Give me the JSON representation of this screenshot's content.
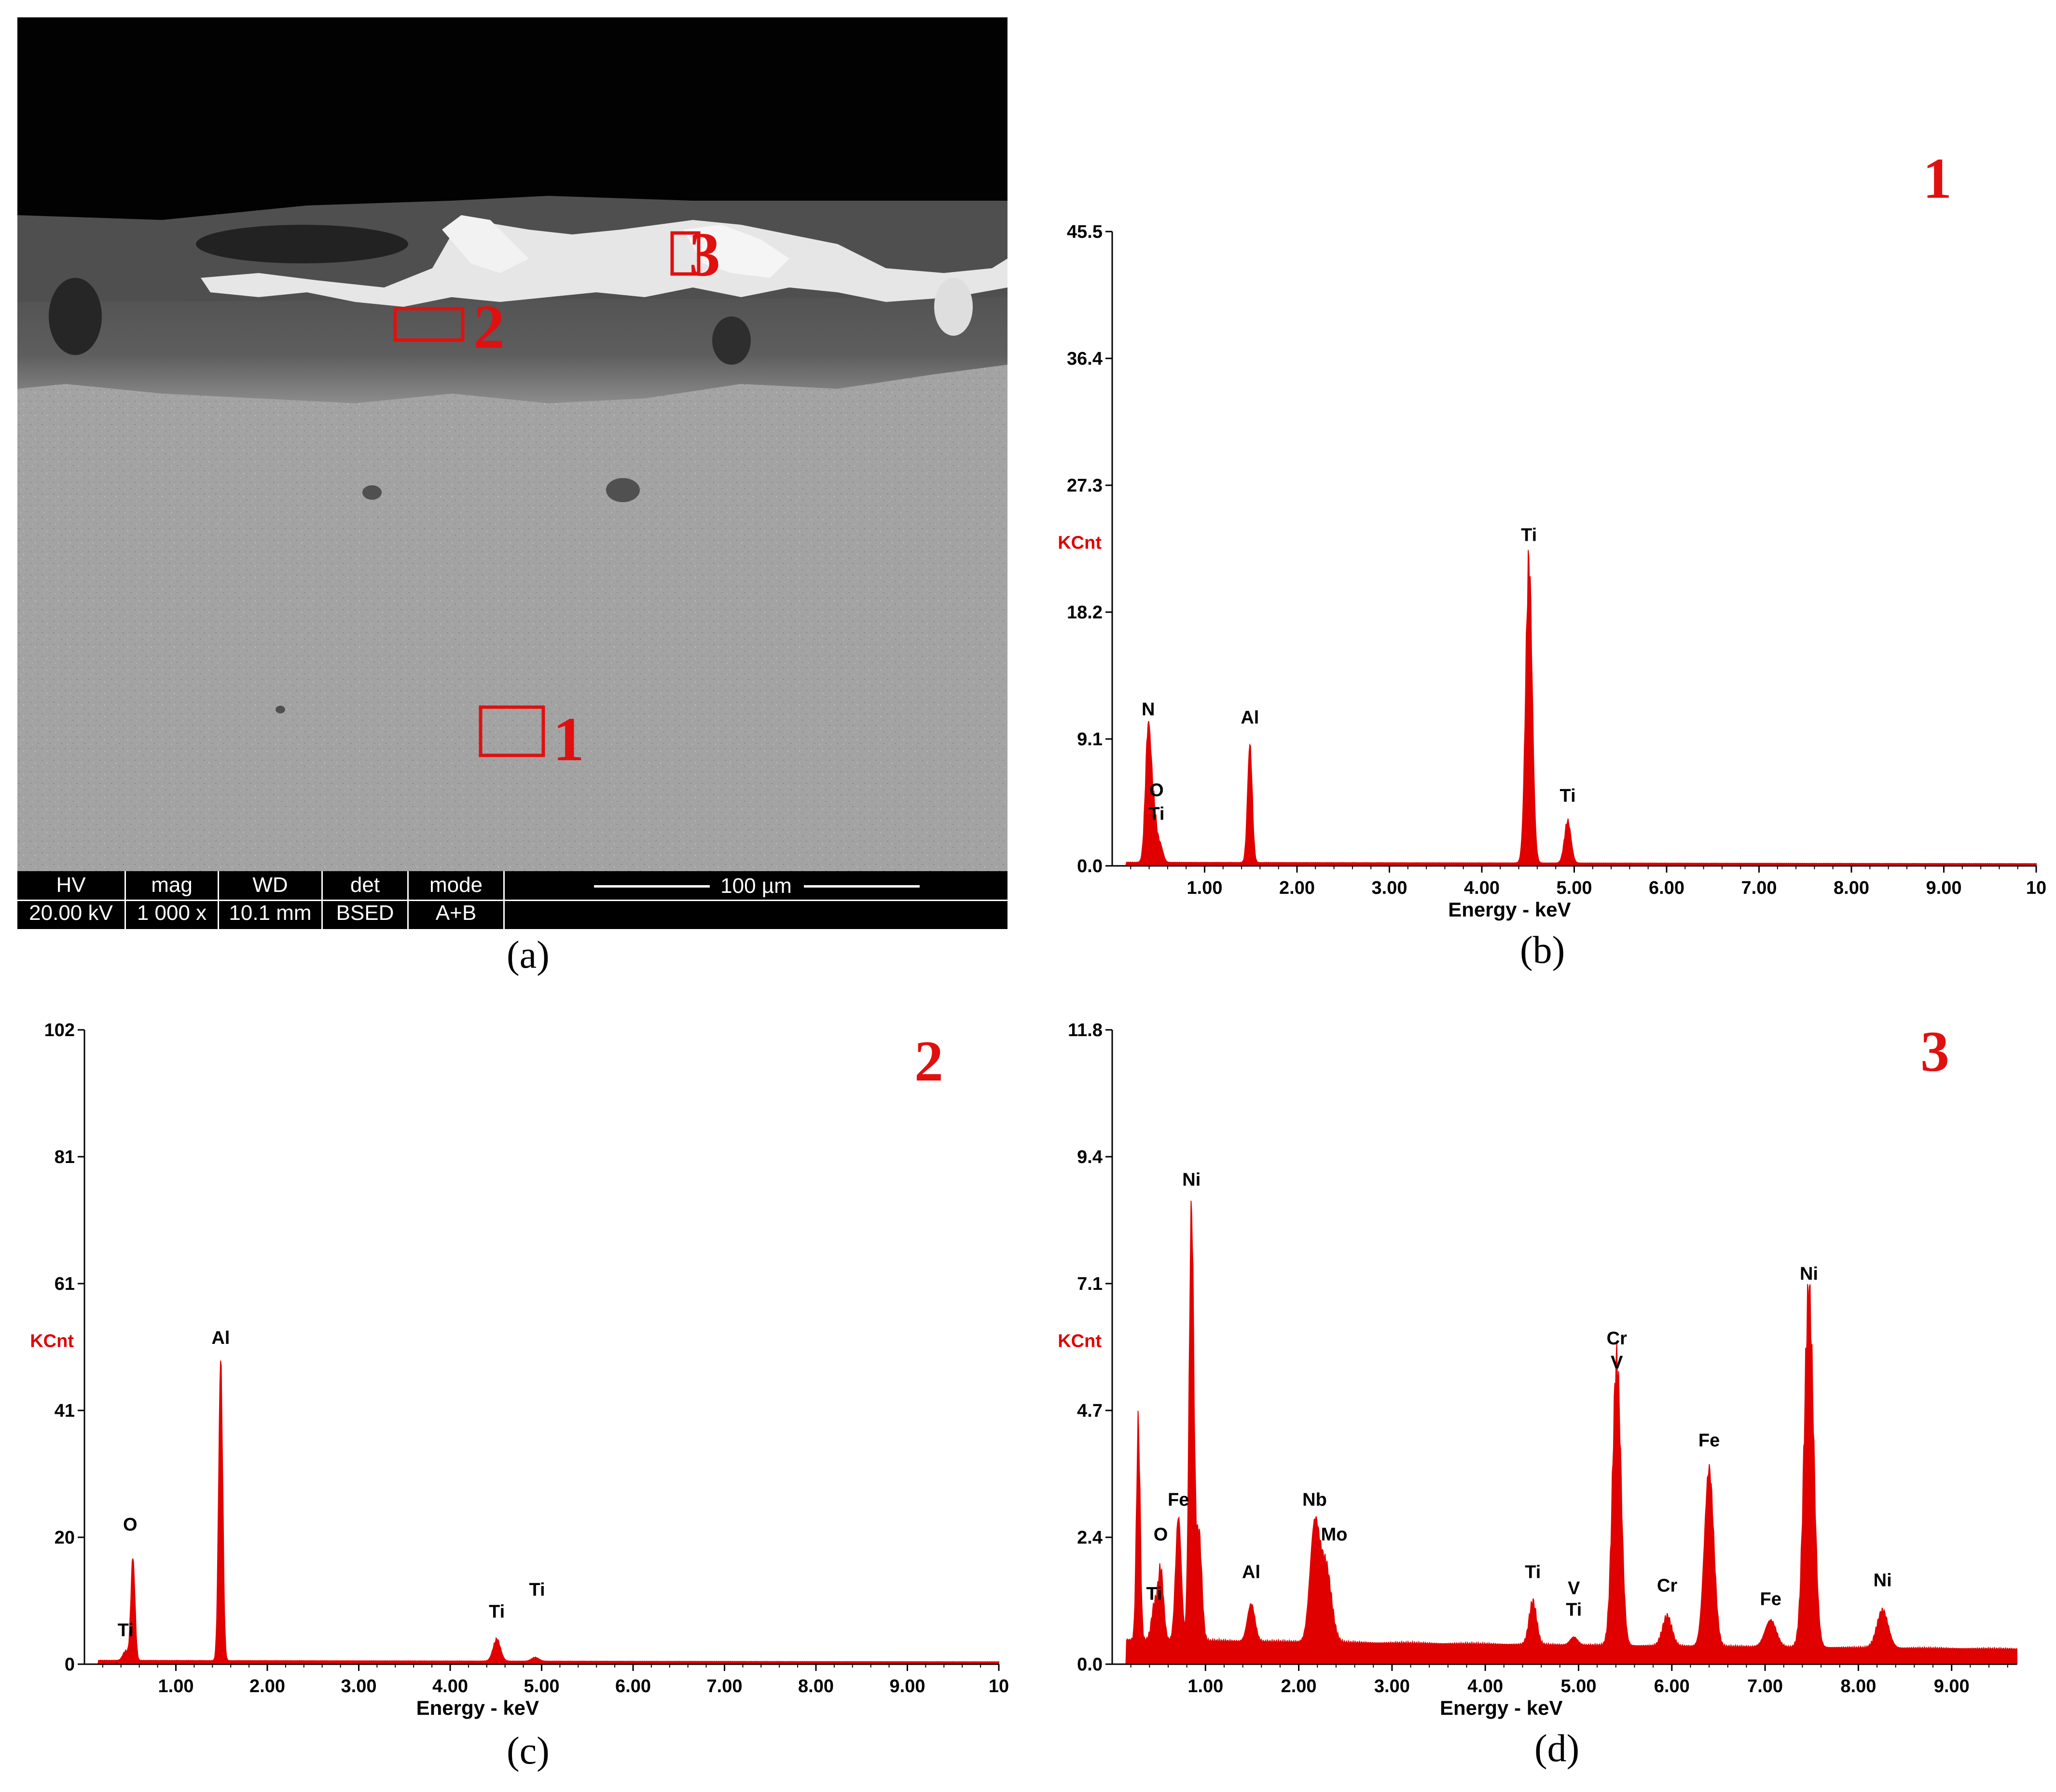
{
  "figure": {
    "captions": [
      "(a)",
      "(b)",
      "(c)",
      "(d)"
    ]
  },
  "sem_image": {
    "regions": [
      "1",
      "2",
      "3"
    ],
    "databar": {
      "headers": [
        "HV",
        "mag",
        "WD",
        "det",
        "mode"
      ],
      "values": [
        "20.00 kV",
        "1 000 x",
        "10.1 mm",
        "BSED",
        "A+B"
      ],
      "scale_bar": "100 µm"
    },
    "box_color": "#e01010"
  },
  "chart_data": [
    {
      "type": "area",
      "panel": "b",
      "spectrum_label": "1",
      "xlabel": "Energy - keV",
      "ylabel": "KCnt",
      "ylim": [
        0,
        45.5
      ],
      "xlim": [
        0,
        10
      ],
      "yticks": [
        "0.0",
        "9.1",
        "18.2",
        "27.3",
        "36.4",
        "45.5"
      ],
      "xticks": [
        "1.00",
        "2.00",
        "3.00",
        "4.00",
        "5.00",
        "6.00",
        "7.00",
        "8.00",
        "9.00",
        "10"
      ],
      "color": "#e00000",
      "baseline": 0.25,
      "peaks": [
        {
          "x": 0.39,
          "y": 9.5,
          "w": 0.03
        },
        {
          "x": 0.45,
          "y": 3.5,
          "w": 0.03
        },
        {
          "x": 0.52,
          "y": 1.2,
          "w": 0.03
        },
        {
          "x": 1.49,
          "y": 8.4,
          "w": 0.025
        },
        {
          "x": 4.51,
          "y": 21.5,
          "w": 0.035
        },
        {
          "x": 4.93,
          "y": 3.0,
          "w": 0.035
        }
      ],
      "labels": [
        {
          "text": "N",
          "x": 0.39,
          "y": 10.8
        },
        {
          "text": "O",
          "x": 0.48,
          "y": 5.0
        },
        {
          "text": "Ti",
          "x": 0.48,
          "y": 3.3
        },
        {
          "text": "Al",
          "x": 1.49,
          "y": 10.2
        },
        {
          "text": "Ti",
          "x": 4.51,
          "y": 23.3
        },
        {
          "text": "Ti",
          "x": 4.93,
          "y": 4.6
        }
      ]
    },
    {
      "type": "area",
      "panel": "c",
      "spectrum_label": "2",
      "xlabel": "Energy - keV",
      "ylabel": "KCnt",
      "ylim": [
        0,
        102
      ],
      "xlim": [
        0,
        10
      ],
      "yticks": [
        "0",
        "20",
        "41",
        "61",
        "81",
        "102"
      ],
      "xticks": [
        "1.00",
        "2.00",
        "3.00",
        "4.00",
        "5.00",
        "6.00",
        "7.00",
        "8.00",
        "9.00",
        "10"
      ],
      "color": "#e00000",
      "baseline": 0.6,
      "peaks": [
        {
          "x": 0.45,
          "y": 1.5,
          "w": 0.03
        },
        {
          "x": 0.53,
          "y": 16.5,
          "w": 0.022
        },
        {
          "x": 1.49,
          "y": 48.0,
          "w": 0.022
        },
        {
          "x": 4.51,
          "y": 3.5,
          "w": 0.04
        },
        {
          "x": 4.93,
          "y": 0.6,
          "w": 0.04
        }
      ],
      "labels": [
        {
          "text": "O",
          "x": 0.5,
          "y": 21.5
        },
        {
          "text": "Ti",
          "x": 0.45,
          "y": 4.5
        },
        {
          "text": "Al",
          "x": 1.49,
          "y": 51.5
        },
        {
          "text": "Ti",
          "x": 4.51,
          "y": 7.5
        },
        {
          "text": "Ti",
          "x": 4.95,
          "y": 11.0
        }
      ]
    },
    {
      "type": "area",
      "panel": "d",
      "spectrum_label": "3",
      "xlabel": "Energy - keV",
      "ylabel": "KCnt",
      "ylim": [
        0,
        11.8
      ],
      "xlim": [
        0,
        9.7
      ],
      "yticks": [
        "0.0",
        "2.4",
        "4.7",
        "7.1",
        "9.4",
        "11.8"
      ],
      "xticks": [
        "1.00",
        "2.00",
        "3.00",
        "4.00",
        "5.00",
        "6.00",
        "7.00",
        "8.00",
        "9.00"
      ],
      "color": "#e00000",
      "baseline": 0.45,
      "peaks": [
        {
          "x": 0.28,
          "y": 4.0,
          "w": 0.02
        },
        {
          "x": 0.45,
          "y": 0.6,
          "w": 0.03
        },
        {
          "x": 0.52,
          "y": 1.3,
          "w": 0.03
        },
        {
          "x": 0.71,
          "y": 2.3,
          "w": 0.03
        },
        {
          "x": 0.85,
          "y": 8.0,
          "w": 0.025
        },
        {
          "x": 0.93,
          "y": 2.0,
          "w": 0.03
        },
        {
          "x": 1.49,
          "y": 0.7,
          "w": 0.04
        },
        {
          "x": 2.17,
          "y": 2.1,
          "w": 0.05
        },
        {
          "x": 2.29,
          "y": 1.4,
          "w": 0.06
        },
        {
          "x": 4.51,
          "y": 0.8,
          "w": 0.04
        },
        {
          "x": 4.95,
          "y": 0.15,
          "w": 0.04
        },
        {
          "x": 5.41,
          "y": 5.3,
          "w": 0.045
        },
        {
          "x": 5.95,
          "y": 0.55,
          "w": 0.05
        },
        {
          "x": 6.4,
          "y": 3.3,
          "w": 0.05
        },
        {
          "x": 7.06,
          "y": 0.5,
          "w": 0.06
        },
        {
          "x": 7.47,
          "y": 6.6,
          "w": 0.05
        },
        {
          "x": 8.26,
          "y": 0.7,
          "w": 0.06
        }
      ],
      "labels": [
        {
          "text": "Ni",
          "x": 0.85,
          "y": 8.9
        },
        {
          "text": "Fe",
          "x": 0.71,
          "y": 2.95
        },
        {
          "text": "O",
          "x": 0.52,
          "y": 2.3
        },
        {
          "text": "Ti",
          "x": 0.45,
          "y": 1.2
        },
        {
          "text": "Al",
          "x": 1.49,
          "y": 1.6
        },
        {
          "text": "Nb",
          "x": 2.17,
          "y": 2.95
        },
        {
          "text": "Mo",
          "x": 2.38,
          "y": 2.3
        },
        {
          "text": "Ti",
          "x": 4.51,
          "y": 1.6
        },
        {
          "text": "V",
          "x": 4.95,
          "y": 1.3
        },
        {
          "text": "Ti",
          "x": 4.95,
          "y": 0.9
        },
        {
          "text": "Cr",
          "x": 5.41,
          "y": 5.95
        },
        {
          "text": "V",
          "x": 5.41,
          "y": 5.5
        },
        {
          "text": "Cr",
          "x": 5.95,
          "y": 1.35
        },
        {
          "text": "Fe",
          "x": 6.4,
          "y": 4.05
        },
        {
          "text": "Fe",
          "x": 7.06,
          "y": 1.1
        },
        {
          "text": "Ni",
          "x": 7.47,
          "y": 7.15
        },
        {
          "text": "Ni",
          "x": 8.26,
          "y": 1.45
        }
      ]
    }
  ]
}
